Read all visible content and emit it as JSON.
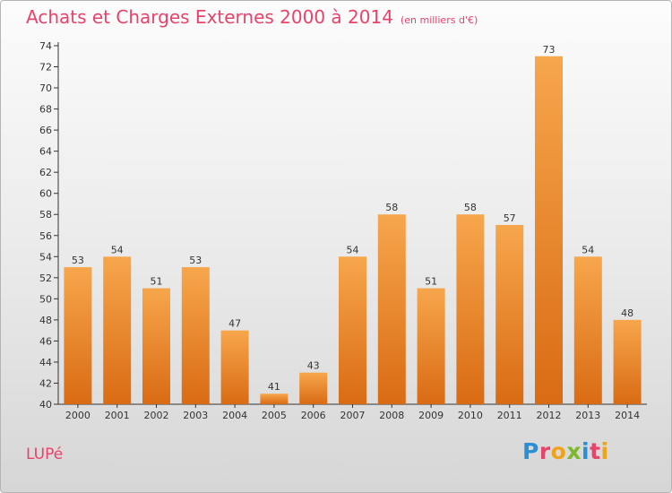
{
  "header": {
    "title": "Achats et Charges Externes 2000 à 2014",
    "unit": "(en milliers d'€)"
  },
  "footer": {
    "commune": "LUPé",
    "logo_text": "Proxiti"
  },
  "colors": {
    "title": "#e8436b",
    "bar_light": "#f7a64c",
    "bar_dark": "#d96b14",
    "logo_letters": [
      "#2b8fd6",
      "#e8436b",
      "#f0a218",
      "#7cb829",
      "#2b8fd6",
      "#e8436b",
      "#f0a218"
    ]
  },
  "chart_data": {
    "type": "bar",
    "title": "Achats et Charges Externes 2000 à 2014",
    "subtitle": "(en milliers d'€)",
    "categories": [
      "2000",
      "2001",
      "2002",
      "2003",
      "2004",
      "2005",
      "2006",
      "2007",
      "2008",
      "2009",
      "2010",
      "2011",
      "2012",
      "2013",
      "2014"
    ],
    "values": [
      53,
      54,
      51,
      53,
      47,
      41,
      43,
      54,
      58,
      51,
      58,
      57,
      73,
      54,
      48
    ],
    "ylim": [
      40,
      74
    ],
    "yticks": [
      40,
      42,
      44,
      46,
      48,
      50,
      52,
      54,
      56,
      58,
      60,
      62,
      64,
      66,
      68,
      70,
      72,
      74
    ],
    "grid": false,
    "data_labels": true
  }
}
